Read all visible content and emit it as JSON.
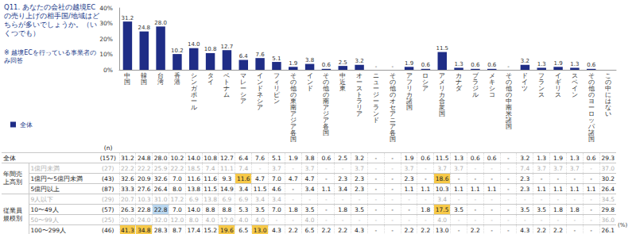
{
  "header": {
    "title": "Q11. あなたの会社の越境ECの売り上げの相手国/地域はどちらが多いでしょうか。（いくつでも）",
    "note": "※ 越境ECを行っている事業者のみ回答"
  },
  "chart_data": {
    "type": "bar",
    "categories": [
      "中国",
      "韓国",
      "台湾",
      "香港",
      "シンガポール",
      "タイ",
      "ベトナム",
      "マレーシア",
      "インドネシア",
      "フィリピン",
      "その他の東南アジア各国",
      "インド",
      "その他の南アジア各国",
      "中近東",
      "オーストラリア",
      "ニュージーランド",
      "その他のオセアニア各国",
      "アフリカ諸国",
      "ロシア",
      "アメリカ合衆国",
      "カナダ",
      "ブラジル",
      "メキシコ",
      "その他の中南米諸国",
      "ドイツ",
      "フランス",
      "イギリス",
      "スペイン",
      "その他のヨーロッパ諸国",
      "この中にはない"
    ],
    "series": [
      {
        "name": "全体",
        "color": "#1f2d86",
        "values": [
          31.2,
          24.8,
          28.0,
          10.2,
          14.0,
          10.8,
          12.7,
          6.4,
          7.6,
          5.1,
          1.9,
          3.8,
          0.6,
          2.5,
          3.2,
          0,
          0,
          1.9,
          0.6,
          11.5,
          1.3,
          0.6,
          0.6,
          0,
          3.2,
          1.3,
          1.9,
          1.3,
          0.6,
          null
        ],
        "value_labels": [
          "31.2",
          "24.8",
          "28.0",
          "10.2",
          "14.0",
          "10.8",
          "12.7",
          "6.4",
          "7.6",
          "5.1",
          "1.9",
          "3.8",
          "0.6",
          "2.5",
          "3.2",
          "-",
          "-",
          "1.9",
          "0.6",
          "11.5",
          "1.3",
          "0.6",
          "0.6",
          "-",
          "3.2",
          "1.3",
          "1.9",
          "1.3",
          "0.6",
          null
        ]
      }
    ],
    "ylim": [
      0,
      40
    ],
    "yticks": [
      {
        "value": 0,
        "label": "0%"
      },
      {
        "value": 10,
        "label": "10%"
      },
      {
        "value": 20,
        "label": "20%"
      },
      {
        "value": 30,
        "label": "30%"
      },
      {
        "value": 40,
        "label": "40%"
      }
    ],
    "grid": false,
    "legend": "left",
    "data_labels": true
  },
  "table": {
    "n_header": "(n)",
    "unit": "(%)",
    "sections": [
      {
        "label": null,
        "rows": [
          {
            "label": "全体",
            "n": "(157)",
            "muted": false,
            "high": [],
            "low": [],
            "cells": [
              "31.2",
              "24.8",
              "28.0",
              "10.2",
              "14.0",
              "10.8",
              "12.7",
              "6.4",
              "7.6",
              "5.1",
              "1.9",
              "3.8",
              "0.6",
              "2.5",
              "3.2",
              "-",
              "-",
              "1.9",
              "0.6",
              "11.5",
              "1.3",
              "0.6",
              "0.6",
              "-",
              "3.2",
              "1.3",
              "1.9",
              "1.3",
              "0.6",
              "29.3"
            ]
          }
        ]
      },
      {
        "label": "年間売上高別",
        "rows": [
          {
            "label": "1億円未満",
            "n": "(27)",
            "muted": true,
            "high": [],
            "low": [],
            "cells": [
              "22.2",
              "22.2",
              "25.9",
              "22.2",
              "18.5",
              "7.4",
              "11.1",
              "7.4",
              "-",
              "3.7",
              "-",
              "3.7",
              "-",
              "-",
              "3.7",
              "-",
              "-",
              "3.7",
              "-",
              "3.7",
              "3.7",
              "-",
              "-",
              "-",
              "7.4",
              "3.7",
              "3.7",
              "3.7",
              "-",
              "37.0"
            ]
          },
          {
            "label": "1億円〜5億円未満",
            "n": "(43)",
            "muted": false,
            "high": [
              7,
              19
            ],
            "low": [],
            "cells": [
              "32.6",
              "20.9",
              "32.6",
              "7.0",
              "11.6",
              "11.6",
              "9.3",
              "11.6",
              "4.7",
              "7.0",
              "4.7",
              "4.7",
              "-",
              "2.3",
              "2.3",
              "-",
              "-",
              "2.3",
              "-",
              "18.6",
              "-",
              "-",
              "-",
              "-",
              "2.3",
              "-",
              "-",
              "-",
              "-",
              "30.2"
            ]
          },
          {
            "label": "5億円以上",
            "n": "(87)",
            "muted": false,
            "high": [],
            "low": [],
            "cells": [
              "33.3",
              "27.6",
              "26.4",
              "8.0",
              "13.8",
              "11.5",
              "14.9",
              "3.4",
              "11.5",
              "4.6",
              "-",
              "3.4",
              "1.1",
              "3.4",
              "2.3",
              "-",
              "-",
              "1.1",
              "1.1",
              "10.3",
              "1.1",
              "1.1",
              "1.1",
              "-",
              "2.3",
              "1.1",
              "1.1",
              "1.1",
              "1.1",
              "26.4"
            ]
          }
        ]
      },
      {
        "label": "従業員規模別",
        "rows": [
          {
            "label": "9人以下",
            "n": "(29)",
            "muted": true,
            "high": [],
            "low": [],
            "cells": [
              "20.7",
              "10.3",
              "31.0",
              "17.2",
              "6.9",
              "13.8",
              "6.9",
              "6.9",
              "3.4",
              "3.4",
              "-",
              "-",
              "-",
              "-",
              "-",
              "-",
              "-",
              "-",
              "-",
              "3.4",
              "-",
              "-",
              "-",
              "-",
              "-",
              "-",
              "-",
              "-",
              "-",
              "34.5"
            ]
          },
          {
            "label": "10〜49人",
            "n": "(57)",
            "muted": false,
            "high": [
              19
            ],
            "low": [
              2
            ],
            "cells": [
              "26.3",
              "22.8",
              "22.8",
              "7.0",
              "14.0",
              "8.8",
              "8.8",
              "5.3",
              "3.5",
              "7.0",
              "1.8",
              "3.5",
              "-",
              "1.8",
              "3.5",
              "-",
              "-",
              "-",
              "1.8",
              "17.5",
              "3.5",
              "-",
              "-",
              "-",
              "3.5",
              "3.5",
              "1.8",
              "1.8",
              "-",
              "29.8"
            ]
          },
          {
            "label": "50〜99人",
            "n": "(25)",
            "muted": true,
            "high": [],
            "low": [],
            "cells": [
              "20.0",
              "24.0",
              "32.0",
              "12.0",
              "8.0",
              "4.0",
              "12.0",
              "4.0",
              "4.0",
              "-",
              "-",
              "4.0",
              "-",
              "-",
              "-",
              "-",
              "-",
              "-",
              "-",
              "4.0",
              "-",
              "-",
              "-",
              "-",
              "-",
              "-",
              "-",
              "-",
              "-",
              "36.0"
            ]
          },
          {
            "label": "100〜299人",
            "n": "(46)",
            "muted": false,
            "high": [
              0,
              1,
              6,
              8
            ],
            "low": [],
            "cells": [
              "41.3",
              "34.8",
              "28.3",
              "8.7",
              "17.4",
              "15.2",
              "19.6",
              "6.5",
              "13.0",
              "4.3",
              "2.2",
              "6.5",
              "2.2",
              "2.2",
              "4.3",
              "-",
              "-",
              "2.2",
              "2.2",
              "13.0",
              "-",
              "2.2",
              "-",
              "-",
              "4.3",
              "2.2",
              "2.2",
              "-",
              "-",
              "26.1"
            ]
          }
        ]
      }
    ]
  }
}
